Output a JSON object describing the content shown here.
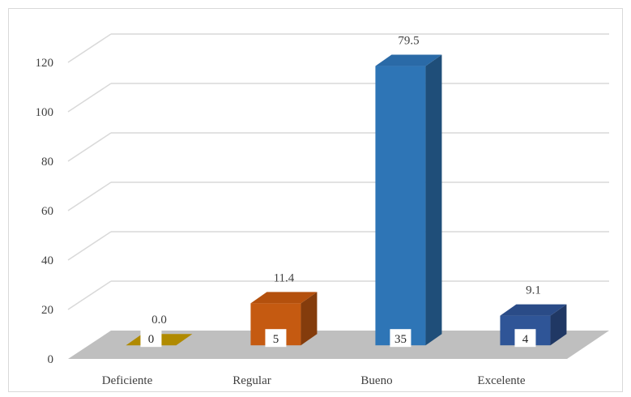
{
  "chart_data": {
    "type": "bar",
    "style": "3d-column",
    "categories": [
      "Deficiente",
      "Regular",
      "Bueno",
      "Excelente"
    ],
    "counts": [
      0,
      5,
      35,
      4
    ],
    "percentages": [
      "0.0",
      "11.4",
      "79.5",
      "9.1"
    ],
    "count_labels": [
      "0",
      "5",
      "35",
      "4"
    ],
    "bar_values": [
      0,
      11.4,
      79.5,
      9.1
    ],
    "bar_heights_y_axis": [
      0,
      17,
      113,
      12
    ],
    "ylim": [
      0,
      120
    ],
    "yticks": [
      "0",
      "20",
      "40",
      "60",
      "80",
      "100",
      "120"
    ],
    "grid": true,
    "title": "",
    "xlabel": "",
    "ylabel": "",
    "colors": {
      "front": [
        "#b08a00",
        "#c55a11",
        "#2e75b6",
        "#2f5597"
      ],
      "side": [
        "#7f6300",
        "#843c0c",
        "#1f4e79",
        "#203864"
      ],
      "top": [
        "#a67c00",
        "#b4500d",
        "#2a6aa7",
        "#2a4b87"
      ],
      "floor": "#bfbfbf",
      "grid": "#d9d9d9"
    }
  }
}
